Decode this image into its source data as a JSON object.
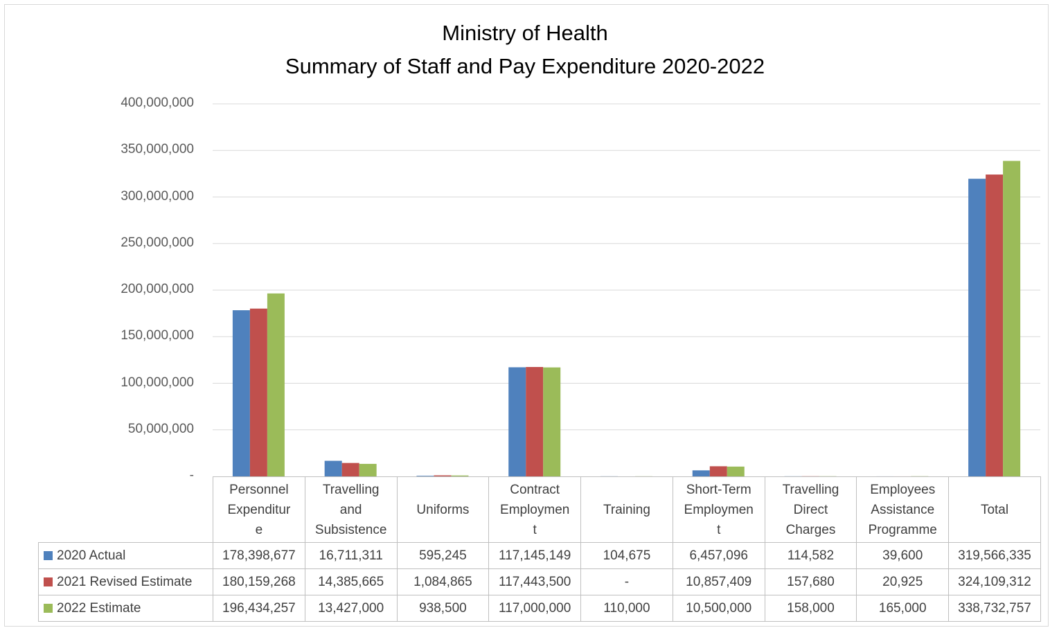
{
  "colors": {
    "series_2020": "#4f81bd",
    "series_2021": "#c0504d",
    "series_2022": "#9bbb59",
    "gridline": "#d9d9d9",
    "axis_text": "#595959"
  },
  "chart_data": {
    "type": "bar",
    "title": "Ministry of Health",
    "subtitle": "Summary of Staff and Pay Expenditure 2020-2022",
    "xlabel": "",
    "ylabel": "",
    "ylim": [
      0,
      400000000
    ],
    "yticks": [
      "-",
      "50,000,000",
      "100,000,000",
      "150,000,000",
      "200,000,000",
      "250,000,000",
      "300,000,000",
      "350,000,000",
      "400,000,000"
    ],
    "grid": true,
    "legend": "data-table",
    "categories": [
      "Personnel Expenditure",
      "Travelling and Subsistence",
      "Uniforms",
      "Contract Employment",
      "Training",
      "Short-Term Employment",
      "Travelling Direct Charges",
      "Employees Assistance Programme",
      "Total"
    ],
    "category_labels": [
      [
        "Personnel",
        "Expenditur",
        "e"
      ],
      [
        "Travelling",
        "and",
        "Subsistence"
      ],
      [
        "Uniforms"
      ],
      [
        "Contract",
        "Employmen",
        "t"
      ],
      [
        "Training"
      ],
      [
        "Short-Term",
        "Employmen",
        "t"
      ],
      [
        "Travelling",
        "Direct",
        "Charges"
      ],
      [
        "Employees",
        "Assistance",
        "Programme"
      ],
      [
        "Total"
      ]
    ],
    "series": [
      {
        "name": "2020 Actual",
        "values": [
          178398677,
          16711311,
          595245,
          117145149,
          104675,
          6457096,
          114582,
          39600,
          319566335
        ],
        "labels": [
          "178,398,677",
          "16,711,311",
          "595,245",
          "117,145,149",
          "104,675",
          "6,457,096",
          "114,582",
          "39,600",
          "319,566,335"
        ]
      },
      {
        "name": "2021 Revised Estimate",
        "values": [
          180159268,
          14385665,
          1084865,
          117443500,
          0,
          10857409,
          157680,
          20925,
          324109312
        ],
        "labels": [
          "180,159,268",
          "14,385,665",
          "1,084,865",
          "117,443,500",
          "-",
          "10,857,409",
          "157,680",
          "20,925",
          "324,109,312"
        ]
      },
      {
        "name": "2022 Estimate",
        "values": [
          196434257,
          13427000,
          938500,
          117000000,
          110000,
          10500000,
          158000,
          165000,
          338732757
        ],
        "labels": [
          "196,434,257",
          "13,427,000",
          "938,500",
          "117,000,000",
          "110,000",
          "10,500,000",
          "158,000",
          "165,000",
          "338,732,757"
        ]
      }
    ]
  }
}
